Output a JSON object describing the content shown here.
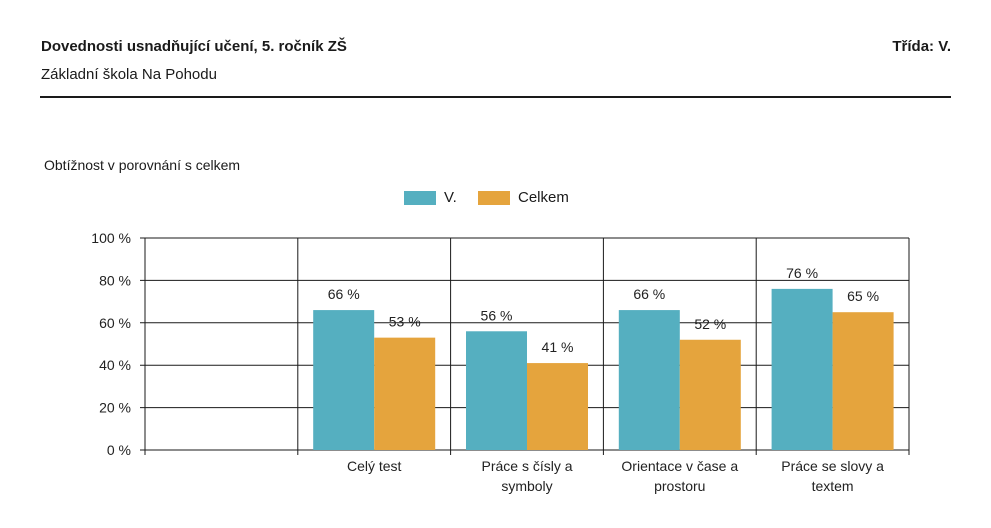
{
  "header": {
    "title": "Dovednosti usnadňující učení, 5. ročník ZŠ",
    "school": "Základní škola Na Pohodu",
    "class_label": "Třída: V."
  },
  "colors": {
    "series_class": "#55afc0",
    "series_total": "#e5a43d",
    "grid": "#1a1a1a"
  },
  "chart_data": {
    "type": "bar",
    "title": "Obtížnost v porovnání s celkem",
    "categories": [
      [
        "Celý test"
      ],
      [
        "Práce s čísly a",
        "symboly"
      ],
      [
        "Orientace v čase a",
        "prostoru"
      ],
      [
        "Práce se slovy a",
        "textem"
      ]
    ],
    "series": [
      {
        "name": "V.",
        "values": [
          66,
          56,
          66,
          76
        ],
        "labels": [
          "66 %",
          "56 %",
          "66 %",
          "76 %"
        ]
      },
      {
        "name": "Celkem",
        "values": [
          53,
          41,
          52,
          65
        ],
        "labels": [
          "53 %",
          "41 %",
          "52 %",
          "65 %"
        ]
      }
    ],
    "ylim": [
      0,
      100
    ],
    "yticks": [
      "0 %",
      "20 %",
      "40 %",
      "60 %",
      "80 %",
      "100 %"
    ],
    "legend_position": "top-center",
    "grid": true
  }
}
